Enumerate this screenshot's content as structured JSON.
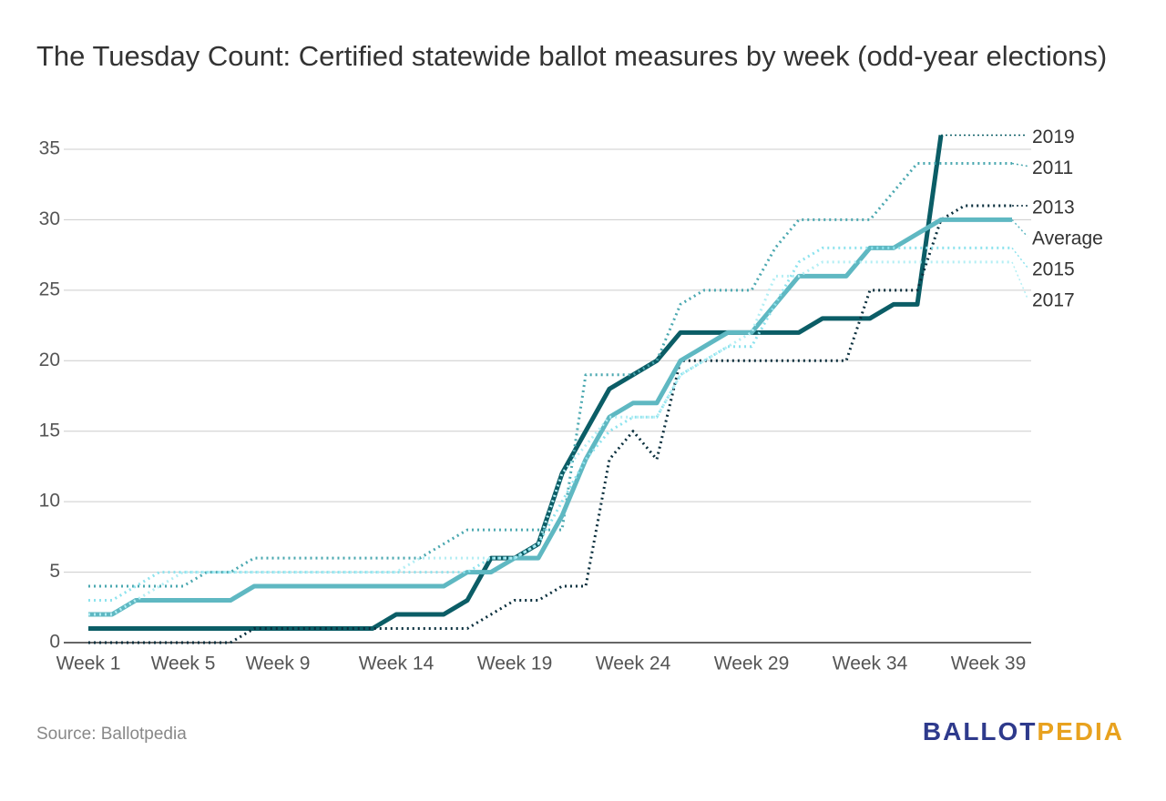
{
  "chart_data": {
    "type": "line",
    "title": "The Tuesday Count: Certified statewide ballot measures by week (odd-year elections)",
    "source": "Source: Ballotpedia",
    "logo": [
      {
        "text": "BALLOT",
        "color": "#2e3a8c"
      },
      {
        "text": "PEDIA",
        "color": "#e8a21f"
      }
    ],
    "categories": [
      "Week 1",
      null,
      null,
      null,
      "Week 5",
      null,
      null,
      null,
      "Week 9",
      null,
      null,
      null,
      null,
      "Week 14",
      null,
      null,
      null,
      null,
      "Week 19",
      null,
      null,
      null,
      null,
      "Week 24",
      null,
      null,
      null,
      null,
      "Week 29",
      null,
      null,
      null,
      null,
      "Week 34",
      null,
      null,
      null,
      null,
      "Week 39",
      null
    ],
    "ylim": [
      0,
      35
    ],
    "yticks": [
      0,
      5,
      10,
      15,
      20,
      25,
      30,
      35
    ],
    "grid": true,
    "series": [
      {
        "name": "2019",
        "color": "#0b5d66",
        "width": 5,
        "dashed": false,
        "values": [
          1,
          1,
          1,
          1,
          1,
          1,
          1,
          1,
          1,
          1,
          1,
          1,
          1,
          2,
          2,
          2,
          3,
          6,
          6,
          7,
          12,
          15,
          18,
          19,
          20,
          22,
          22,
          22,
          22,
          22,
          22,
          23,
          23,
          23,
          24,
          24,
          36,
          null,
          null,
          null
        ]
      },
      {
        "name": "2011",
        "color": "#4ba8b0",
        "width": 3,
        "dashed": true,
        "values": [
          4,
          4,
          4,
          4,
          4,
          5,
          5,
          6,
          6,
          6,
          6,
          6,
          6,
          6,
          6,
          7,
          8,
          8,
          8,
          8,
          8,
          19,
          19,
          19,
          20,
          24,
          25,
          25,
          25,
          28,
          30,
          30,
          30,
          30,
          32,
          34,
          34,
          34,
          34,
          34
        ]
      },
      {
        "name": "2013",
        "color": "#0a2f3d",
        "width": 3,
        "dashed": true,
        "values": [
          0,
          0,
          0,
          0,
          0,
          0,
          0,
          1,
          1,
          1,
          1,
          1,
          1,
          1,
          1,
          1,
          1,
          2,
          3,
          3,
          4,
          4,
          13,
          15,
          13,
          20,
          20,
          20,
          20,
          20,
          20,
          20,
          20,
          25,
          25,
          25,
          30,
          31,
          31,
          31
        ]
      },
      {
        "name": "Average",
        "color": "#5fb8c2",
        "width": 5,
        "dashed": false,
        "values": [
          2,
          2,
          3,
          3,
          3,
          3,
          3,
          4,
          4,
          4,
          4,
          4,
          4,
          4,
          4,
          4,
          5,
          5,
          6,
          6,
          9,
          13,
          16,
          17,
          17,
          20,
          21,
          22,
          22,
          24,
          26,
          26,
          26,
          28,
          28,
          29,
          30,
          30,
          30,
          30
        ]
      },
      {
        "name": "2015",
        "color": "#8de3ee",
        "width": 3,
        "dashed": true,
        "values": [
          3,
          3,
          4,
          5,
          5,
          5,
          5,
          5,
          5,
          5,
          5,
          5,
          5,
          5,
          5,
          5,
          5,
          6,
          6,
          7,
          10,
          13,
          15,
          16,
          16,
          19,
          20,
          21,
          21,
          24,
          27,
          28,
          28,
          28,
          28,
          28,
          28,
          28,
          28,
          28
        ]
      },
      {
        "name": "2017",
        "color": "#b3eef4",
        "width": 3,
        "dashed": true,
        "values": [
          2,
          2,
          3,
          4,
          5,
          5,
          5,
          5,
          5,
          5,
          5,
          5,
          5,
          5,
          6,
          6,
          6,
          6,
          6,
          7,
          12,
          14,
          16,
          16,
          16,
          19,
          20,
          21,
          22,
          26,
          26,
          27,
          27,
          27,
          27,
          27,
          27,
          27,
          27,
          27
        ]
      }
    ]
  }
}
